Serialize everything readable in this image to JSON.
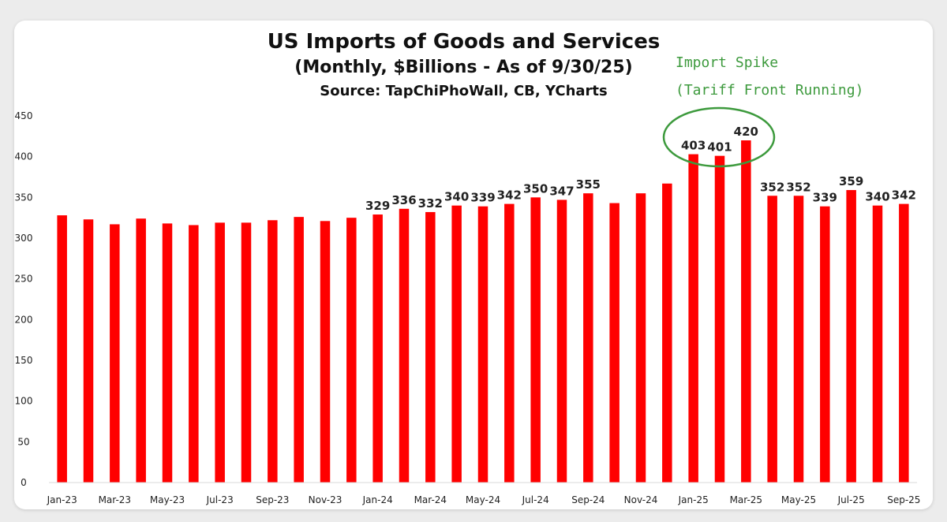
{
  "chart_data": {
    "type": "bar",
    "title": "US Imports of Goods and Services",
    "subtitle": "(Monthly, $Billions - As of 9/30/25)",
    "source": "Source: TapChiPhoWall, CB, YCharts",
    "annotation": {
      "line1": "Import Spike",
      "line2": "(Tariff Front Running)",
      "color": "#3d9a3d"
    },
    "bar_color": "#ff0000",
    "ylim": [
      0,
      450
    ],
    "yticks": [
      0,
      50,
      100,
      150,
      200,
      250,
      300,
      350,
      400,
      450
    ],
    "categories": [
      "Jan-23",
      "Feb-23",
      "Mar-23",
      "Apr-23",
      "May-23",
      "Jun-23",
      "Jul-23",
      "Aug-23",
      "Sep-23",
      "Oct-23",
      "Nov-23",
      "Dec-23",
      "Jan-24",
      "Feb-24",
      "Mar-24",
      "Apr-24",
      "May-24",
      "Jun-24",
      "Jul-24",
      "Aug-24",
      "Sep-24",
      "Oct-24",
      "Nov-24",
      "Dec-24",
      "Jan-25",
      "Feb-25",
      "Mar-25",
      "Apr-25",
      "May-25",
      "Jun-25",
      "Jul-25",
      "Aug-25",
      "Sep-25"
    ],
    "x_tick_labels": [
      "Jan-23",
      "Mar-23",
      "May-23",
      "Jul-23",
      "Sep-23",
      "Nov-23",
      "Jan-24",
      "Mar-24",
      "May-24",
      "Jul-24",
      "Sep-24",
      "Nov-24",
      "Jan-25",
      "Mar-25",
      "May-25",
      "Jul-25",
      "Sep-25"
    ],
    "values": [
      328,
      323,
      317,
      324,
      318,
      316,
      319,
      319,
      322,
      326,
      321,
      325,
      329,
      336,
      332,
      340,
      339,
      342,
      350,
      347,
      355,
      343,
      355,
      367,
      403,
      401,
      420,
      352,
      352,
      339,
      359,
      340,
      342
    ],
    "data_labels": [
      null,
      null,
      null,
      null,
      null,
      null,
      null,
      null,
      null,
      null,
      null,
      null,
      "329",
      "336",
      "332",
      "340",
      "339",
      "342",
      "350",
      "347",
      "355",
      null,
      null,
      null,
      "403",
      "401",
      "420",
      "352",
      "352",
      "339",
      "359",
      "340",
      "342"
    ],
    "xlabel": "",
    "ylabel": "",
    "grid": false
  }
}
